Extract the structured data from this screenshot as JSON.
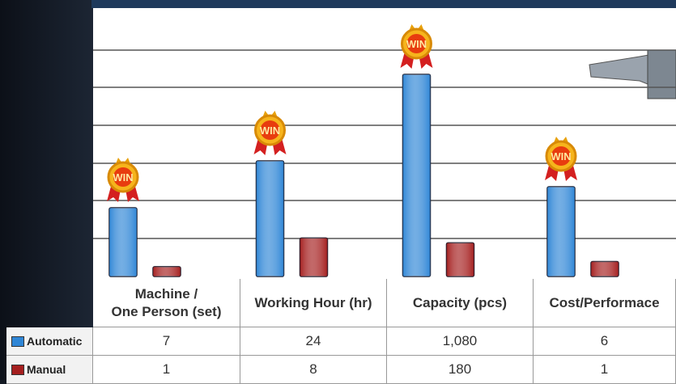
{
  "chart_data": {
    "type": "bar",
    "categories": [
      "Machine /\nOne Person (set)",
      "Working Hour (hr)",
      "Capacity (pcs)",
      "Cost/Performace"
    ],
    "series": [
      {
        "name": "Automatic",
        "color": "#2f86d6",
        "values": [
          7,
          24,
          1080,
          6
        ],
        "value_labels": [
          "7",
          "24",
          "1,080",
          "6"
        ]
      },
      {
        "name": "Manual",
        "color": "#a51f1f",
        "values": [
          1,
          8,
          180,
          1
        ],
        "value_labels": [
          "1",
          "8",
          "180",
          "1"
        ]
      }
    ],
    "annotations": [
      "WIN",
      "WIN",
      "WIN",
      "WIN"
    ]
  }
}
